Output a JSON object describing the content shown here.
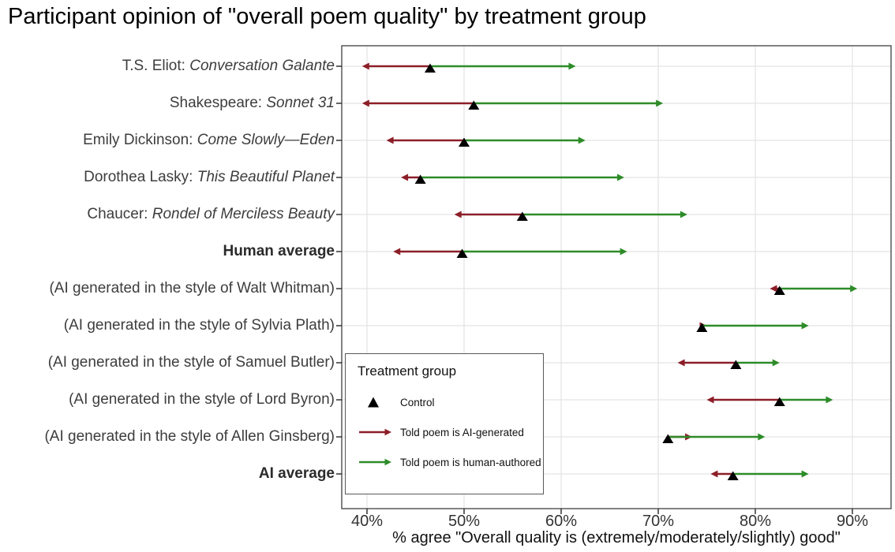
{
  "colors": {
    "control": "#000000",
    "told_ai": "#8c1e28",
    "told_human": "#2d8c28",
    "gridline": "#e3e3e3",
    "panel_border": "#404040",
    "axis_text": "#333333"
  },
  "chart_data": {
    "type": "scatter",
    "variant": "arrow-dumbbell",
    "title": "Participant opinion of \"overall poem quality\" by treatment group",
    "xlabel": "% agree \"Overall quality is (extremely/moderately/slightly) good\"",
    "xlim": [
      37.5,
      94
    ],
    "x_ticks": [
      40,
      50,
      60,
      70,
      80,
      90
    ],
    "x_tick_labels": [
      "40%",
      "50%",
      "60%",
      "70%",
      "80%",
      "90%"
    ],
    "grid": "major-only",
    "legend": {
      "position": "inside-bottom-left",
      "title": "Treatment group",
      "items": [
        {
          "name": "Control",
          "marker": "triangle",
          "color": "#000000"
        },
        {
          "name": "Told poem is AI-generated",
          "marker": "arrow",
          "color": "#8c1e28"
        },
        {
          "name": "Told poem is human-authored",
          "marker": "arrow",
          "color": "#2d8c28"
        }
      ]
    },
    "categories": [
      {
        "text": "T.S. Eliot: ",
        "italic": "Conversation Galante",
        "bold": false
      },
      {
        "text": "Shakespeare: ",
        "italic": "Sonnet 31",
        "bold": false
      },
      {
        "text": "Emily Dickinson: ",
        "italic": "Come Slowly—Eden",
        "bold": false
      },
      {
        "text": "Dorothea Lasky: ",
        "italic": "This Beautiful Planet",
        "bold": false
      },
      {
        "text": "Chaucer: ",
        "italic": "Rondel of Merciless Beauty",
        "bold": false
      },
      {
        "text": "Human average",
        "italic": "",
        "bold": true
      },
      {
        "text": "(AI generated in the style of Walt Whitman)",
        "italic": "",
        "bold": false
      },
      {
        "text": "(AI generated in the style of Sylvia Plath)",
        "italic": "",
        "bold": false
      },
      {
        "text": "(AI generated in the style of Samuel Butler)",
        "italic": "",
        "bold": false
      },
      {
        "text": "(AI generated in the style of Lord Byron)",
        "italic": "",
        "bold": false
      },
      {
        "text": "(AI generated in the style of Allen Ginsberg)",
        "italic": "",
        "bold": false
      },
      {
        "text": "AI average",
        "italic": "",
        "bold": true
      }
    ],
    "series": [
      {
        "name": "Control",
        "marker": "triangle",
        "color": "#000000",
        "values": [
          46.5,
          51,
          50,
          45.5,
          56,
          49.8,
          82.5,
          74.5,
          78,
          82.5,
          71,
          77.7
        ]
      },
      {
        "name": "Told poem is AI-generated",
        "marker": "arrow",
        "color": "#8c1e28",
        "values": [
          39.5,
          39.5,
          42,
          43.5,
          49,
          42.7,
          81.5,
          75,
          72,
          75,
          73.5,
          75.4
        ]
      },
      {
        "name": "Told poem is human-authored",
        "marker": "arrow",
        "color": "#2d8c28",
        "values": [
          61.5,
          70.5,
          62.5,
          66.5,
          73,
          66.8,
          90.5,
          85.5,
          82.5,
          88,
          81,
          85.5
        ]
      }
    ]
  }
}
